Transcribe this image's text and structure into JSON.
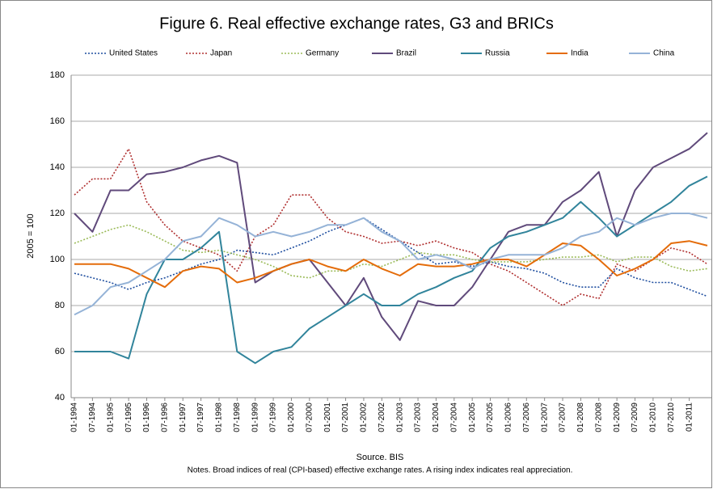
{
  "chart_data": {
    "type": "line",
    "title": "Figure 6. Real effective exchange rates, G3 and BRICs",
    "y_label": "2005 = 100",
    "source": "Source. BIS",
    "notes": "Notes. Broad indices of real (CPI-based) effective exchange rates. A rising index indicates real appreciation.",
    "categories": [
      "01-1994",
      "07-1994",
      "01-1995",
      "07-1995",
      "01-1996",
      "07-1996",
      "01-1997",
      "07-1997",
      "01-1998",
      "07-1998",
      "01-1999",
      "07-1999",
      "01-2000",
      "07-2000",
      "01-2001",
      "07-2001",
      "01-2002",
      "07-2002",
      "01-2003",
      "07-2003",
      "01-2004",
      "07-2004",
      "01-2005",
      "07-2005",
      "01-2006",
      "07-2006",
      "01-2007",
      "07-2007",
      "01-2008",
      "07-2008",
      "01-2009",
      "07-2009",
      "01-2010",
      "07-2010",
      "01-2011",
      null
    ],
    "ylim": [
      40,
      180
    ],
    "yticks": [
      40,
      60,
      80,
      100,
      120,
      140,
      160,
      180
    ],
    "series": [
      {
        "name": "United States",
        "color": "#1f4e9f",
        "dash": "dotted",
        "values": [
          94,
          92,
          90,
          87,
          90,
          92,
          95,
          98,
          100,
          104,
          103,
          102,
          105,
          108,
          112,
          115,
          118,
          113,
          108,
          103,
          98,
          99,
          97,
          99,
          97,
          96,
          94,
          90,
          88,
          88,
          96,
          92,
          90,
          90,
          87,
          84
        ]
      },
      {
        "name": "Japan",
        "color": "#b03030",
        "dash": "dotted",
        "values": [
          128,
          135,
          135,
          148,
          125,
          115,
          108,
          105,
          102,
          95,
          110,
          115,
          128,
          128,
          118,
          112,
          110,
          107,
          108,
          106,
          108,
          105,
          103,
          98,
          95,
          90,
          85,
          80,
          85,
          83,
          98,
          95,
          100,
          105,
          103,
          98
        ]
      },
      {
        "name": "Germany",
        "color": "#9bbb59",
        "dash": "dotted",
        "values": [
          107,
          110,
          113,
          115,
          112,
          108,
          104,
          103,
          104,
          102,
          100,
          97,
          93,
          92,
          95,
          95,
          98,
          97,
          100,
          103,
          102,
          102,
          100,
          99,
          99,
          99,
          100,
          101,
          101,
          102,
          99,
          101,
          101,
          97,
          95,
          96
        ]
      },
      {
        "name": "Brazil",
        "color": "#604a7b",
        "dash": "solid",
        "values": [
          120,
          112,
          130,
          130,
          137,
          138,
          140,
          143,
          145,
          142,
          90,
          95,
          98,
          100,
          90,
          80,
          92,
          75,
          65,
          82,
          80,
          80,
          88,
          100,
          112,
          115,
          115,
          125,
          130,
          138,
          110,
          130,
          140,
          144,
          148,
          155
        ]
      },
      {
        "name": "Russia",
        "color": "#31849b",
        "dash": "solid",
        "values": [
          60,
          60,
          60,
          57,
          85,
          100,
          100,
          105,
          112,
          60,
          55,
          60,
          62,
          70,
          75,
          80,
          85,
          80,
          80,
          85,
          88,
          92,
          95,
          105,
          110,
          112,
          115,
          118,
          125,
          118,
          110,
          115,
          120,
          125,
          132,
          136
        ]
      },
      {
        "name": "India",
        "color": "#e46c0a",
        "dash": "solid",
        "values": [
          98,
          98,
          98,
          96,
          92,
          88,
          95,
          97,
          96,
          90,
          92,
          95,
          98,
          100,
          97,
          95,
          100,
          96,
          93,
          98,
          97,
          97,
          98,
          100,
          100,
          97,
          102,
          107,
          106,
          100,
          93,
          96,
          100,
          107,
          108,
          106
        ]
      },
      {
        "name": "China",
        "color": "#95b3d7",
        "dash": "solid",
        "values": [
          76,
          80,
          88,
          90,
          95,
          100,
          108,
          110,
          118,
          115,
          110,
          112,
          110,
          112,
          115,
          115,
          118,
          112,
          108,
          100,
          102,
          100,
          96,
          100,
          102,
          102,
          102,
          105,
          110,
          112,
          118,
          115,
          118,
          120,
          120,
          118
        ]
      }
    ]
  }
}
